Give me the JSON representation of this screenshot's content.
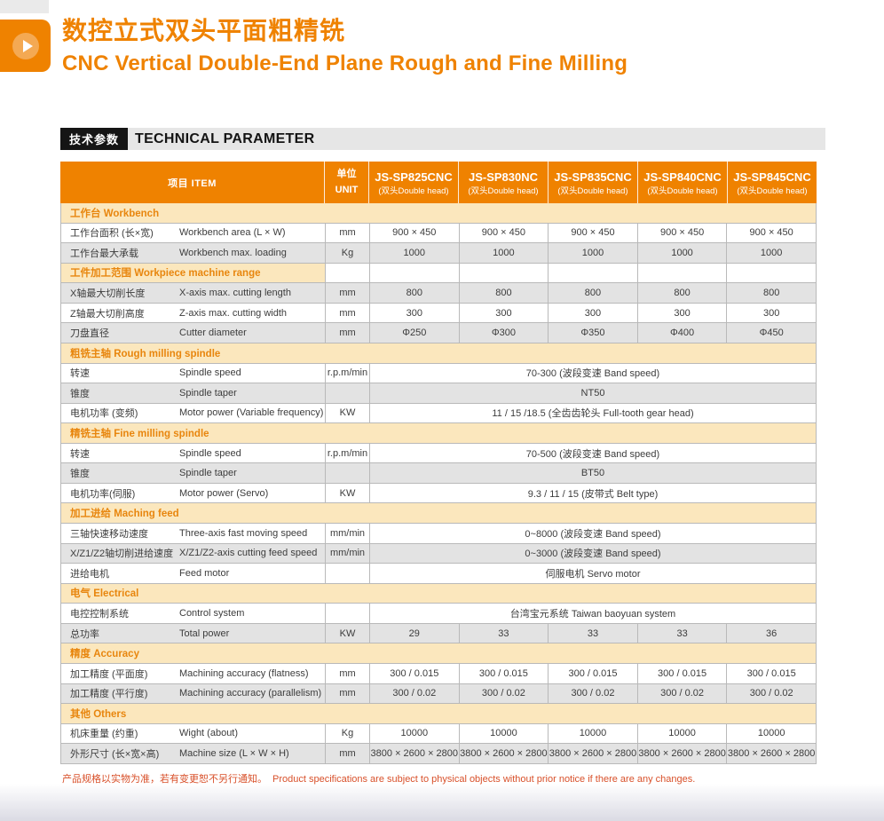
{
  "header": {
    "title_zh": "数控立式双头平面粗精铣",
    "title_en": "CNC Vertical Double-End Plane Rough and Fine Milling"
  },
  "section_bar": {
    "label_zh": "技术参数",
    "label_en": "TECHNICAL PARAMETER"
  },
  "colors": {
    "accent_orange": "#ef8200",
    "section_band_cream": "#fbe7bd",
    "section_text_orange": "#e8860e",
    "alt_row_gray": "#e3e3e3",
    "note_red_orange": "#d8502a"
  },
  "table": {
    "item_header": "项目 ITEM",
    "unit_header_zh": "单位",
    "unit_header_en": "UNIT",
    "models": [
      {
        "name": "JS-SP825CNC",
        "sub": "(双头Double head)"
      },
      {
        "name": "JS-SP830NC",
        "sub": "(双头Double head)"
      },
      {
        "name": "JS-SP835CNC",
        "sub": "(双头Double head)"
      },
      {
        "name": "JS-SP840CNC",
        "sub": "(双头Double head)"
      },
      {
        "name": "JS-SP845CNC",
        "sub": "(双头Double head)"
      }
    ],
    "rows": [
      {
        "type": "section",
        "zh": "工作台",
        "en": "Workbench"
      },
      {
        "type": "data",
        "zh": "工作台面积 (长×宽)",
        "en": "Workbench area (L × W)",
        "unit": "mm",
        "shade": "white",
        "values": [
          "900 × 450",
          "900 × 450",
          "900 × 450",
          "900 × 450",
          "900 × 450"
        ]
      },
      {
        "type": "data",
        "zh": "工作台最大承载",
        "en": "Workbench max. loading",
        "unit": "Kg",
        "shade": "gray",
        "values": [
          "1000",
          "1000",
          "1000",
          "1000",
          "1000"
        ]
      },
      {
        "type": "section",
        "zh": "工件加工范围",
        "en": "Workpiece machine range",
        "empty_cells": true
      },
      {
        "type": "data",
        "zh": "X轴最大切削长度",
        "en": "X-axis max. cutting length",
        "unit": "mm",
        "shade": "gray",
        "values": [
          "800",
          "800",
          "800",
          "800",
          "800"
        ]
      },
      {
        "type": "data",
        "zh": "Z轴最大切削高度",
        "en": "Z-axis max. cutting width",
        "unit": "mm",
        "shade": "white",
        "values": [
          "300",
          "300",
          "300",
          "300",
          "300"
        ]
      },
      {
        "type": "data",
        "zh": "刀盘直径",
        "en": "Cutter diameter",
        "unit": "mm",
        "shade": "gray",
        "values": [
          "Φ250",
          "Φ300",
          "Φ350",
          "Φ400",
          "Φ450"
        ]
      },
      {
        "type": "section",
        "zh": "粗铣主轴",
        "en": "Rough milling spindle"
      },
      {
        "type": "data",
        "zh": "转速",
        "en": "Spindle speed",
        "unit": "r.p.m/min",
        "shade": "white",
        "span": "70-300 (波段变速 Band speed)"
      },
      {
        "type": "data",
        "zh": "锥度",
        "en": "Spindle taper",
        "unit": "",
        "shade": "gray",
        "span": "NT50"
      },
      {
        "type": "data",
        "zh": "电机功率 (变频)",
        "en": "Motor power (Variable frequency)",
        "unit": "KW",
        "shade": "white",
        "span": "11 / 15 /18.5 (全齿齿轮头 Full-tooth gear head)"
      },
      {
        "type": "section",
        "zh": "精铣主轴",
        "en": "Fine milling spindle"
      },
      {
        "type": "data",
        "zh": "转速",
        "en": "Spindle speed",
        "unit": "r.p.m/min",
        "shade": "white",
        "span": "70-500 (波段变速 Band speed)"
      },
      {
        "type": "data",
        "zh": "锥度",
        "en": "Spindle taper",
        "unit": "",
        "shade": "gray",
        "span": "BT50"
      },
      {
        "type": "data",
        "zh": "电机功率(伺服)",
        "en": "Motor power (Servo)",
        "unit": "KW",
        "shade": "white",
        "span": "9.3 / 11 / 15 (皮带式 Belt type)"
      },
      {
        "type": "section",
        "zh": "加工进给",
        "en": "Maching feed"
      },
      {
        "type": "data",
        "zh": "三轴快速移动速度",
        "en": "Three-axis fast moving speed",
        "unit": "mm/min",
        "shade": "white",
        "span": "0~8000  (波段变速 Band speed)"
      },
      {
        "type": "data",
        "zh": "X/Z1/Z2轴切削进给速度",
        "en": "X/Z1/Z2-axis cutting feed speed",
        "unit": "mm/min",
        "shade": "gray",
        "span": "0~3000  (波段变速 Band speed)"
      },
      {
        "type": "data",
        "zh": "进给电机",
        "en": "Feed motor",
        "unit": "",
        "shade": "white",
        "span": "伺服电机 Servo motor"
      },
      {
        "type": "section",
        "zh": "电气",
        "en": "Electrical"
      },
      {
        "type": "data",
        "zh": "电控控制系统",
        "en": "Control system",
        "unit": "",
        "shade": "white",
        "span": "台湾宝元系统  Taiwan baoyuan system"
      },
      {
        "type": "data",
        "zh": "总功率",
        "en": "Total power",
        "unit": "KW",
        "shade": "gray",
        "values": [
          "29",
          "33",
          "33",
          "33",
          "36"
        ]
      },
      {
        "type": "section",
        "zh": "精度",
        "en": "Accuracy"
      },
      {
        "type": "data",
        "zh": "加工精度 (平面度)",
        "en": "Machining accuracy (flatness)",
        "unit": "mm",
        "shade": "white",
        "values": [
          "300 / 0.015",
          "300 / 0.015",
          "300 / 0.015",
          "300 / 0.015",
          "300 / 0.015"
        ]
      },
      {
        "type": "data",
        "zh": "加工精度 (平行度)",
        "en": "Machining accuracy (parallelism)",
        "unit": "mm",
        "shade": "gray",
        "values": [
          "300 / 0.02",
          "300 / 0.02",
          "300 / 0.02",
          "300 / 0.02",
          "300 / 0.02"
        ]
      },
      {
        "type": "section",
        "zh": "其他",
        "en": "Others"
      },
      {
        "type": "data",
        "zh": "机床重量 (约重)",
        "en": "Wight (about)",
        "unit": "Kg",
        "shade": "white",
        "values": [
          "10000",
          "10000",
          "10000",
          "10000",
          "10000"
        ]
      },
      {
        "type": "data",
        "zh": "外形尺寸 (长×宽×高)",
        "en": "Machine size  (L × W × H)",
        "unit": "mm",
        "shade": "gray",
        "values": [
          "3800 × 2600 × 2800",
          "3800 × 2600 × 2800",
          "3800 × 2600 × 2800",
          "3800 × 2600 × 2800",
          "3800 × 2600 × 2800"
        ]
      }
    ]
  },
  "footer": {
    "note_zh": "产品规格以实物为准，若有变更恕不另行通知。",
    "note_en": "Product specifications are subject to physical objects without prior notice if there are any changes."
  }
}
